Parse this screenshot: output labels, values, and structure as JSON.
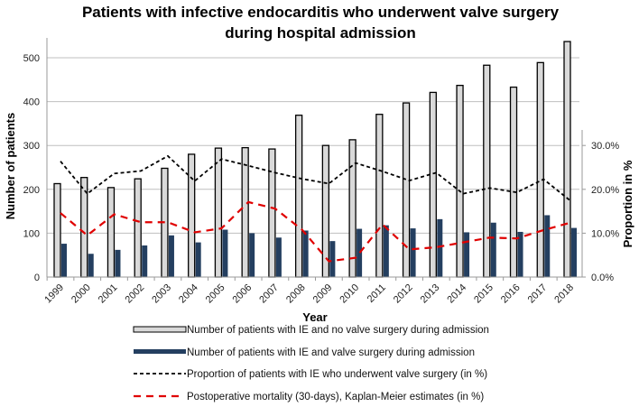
{
  "chart_data": {
    "type": "bar",
    "title": [
      "Patients with infective endocarditis who underwent valve surgery",
      "during hospital admission"
    ],
    "xlabel": "Year",
    "ylabel": "Number of patients",
    "y2label": "Proportion in %",
    "ylim": [
      0,
      550
    ],
    "yticks": [
      "0",
      "100",
      "200",
      "300",
      "400",
      "500"
    ],
    "y2lim": [
      0,
      30
    ],
    "y2ticks": [
      "0.0%",
      "10.0%",
      "20.0%",
      "30.0%"
    ],
    "grid": true,
    "legend_placement": "bottom",
    "categories": [
      "1999",
      "2000",
      "2001",
      "2002",
      "2003",
      "2004",
      "2005",
      "2006",
      "2007",
      "2008",
      "2009",
      "2010",
      "2011",
      "2012",
      "2013",
      "2014",
      "2015",
      "2016",
      "2017",
      "2018"
    ],
    "series": [
      {
        "name": "Number of patients with IE and no valve surgery during admission",
        "kind": "bar",
        "axis": "left",
        "color": "#d9d9d9",
        "values": [
          213,
          227,
          204,
          224,
          248,
          280,
          294,
          295,
          292,
          369,
          300,
          313,
          371,
          397,
          421,
          437,
          483,
          433,
          489,
          537
        ]
      },
      {
        "name": "Number of patients with IE and valve surgery during admission",
        "kind": "bar",
        "axis": "left",
        "color": "#243f60",
        "values": [
          76,
          53,
          62,
          72,
          95,
          79,
          108,
          100,
          90,
          106,
          82,
          110,
          118,
          111,
          132,
          102,
          124,
          103,
          141,
          112
        ]
      },
      {
        "name": "Proportion of patients with IE who underwent valve surgery (in %)",
        "kind": "line",
        "axis": "right",
        "color": "#000000",
        "values": [
          26.4,
          19.0,
          23.6,
          24.2,
          27.6,
          21.9,
          26.9,
          25.4,
          23.8,
          22.4,
          21.3,
          26.0,
          24.1,
          22.0,
          23.8,
          19.0,
          20.3,
          19.3,
          22.3,
          17.4
        ]
      },
      {
        "name": "Postoperative mortality (30-days), Kaplan-Meier estimates (in %)",
        "kind": "line",
        "axis": "right",
        "color": "#e00000",
        "values": [
          14.6,
          9.5,
          14.3,
          12.5,
          12.5,
          10.2,
          11.1,
          17.1,
          15.6,
          10.8,
          3.6,
          4.4,
          12.0,
          6.3,
          6.8,
          7.9,
          9.0,
          8.8,
          10.7,
          12.4
        ]
      }
    ]
  }
}
